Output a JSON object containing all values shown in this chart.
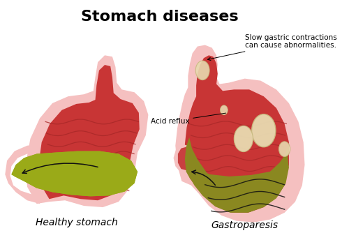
{
  "title": "Stomach diseases",
  "title_fontsize": 16,
  "title_fontweight": "bold",
  "label_healthy": "Healthy stomach",
  "label_gastroparesis": "Gastroparesis",
  "annotation_acid": "Acid reflux",
  "annotation_slow": "Slow gastric contractions\ncan cause abnormalities.",
  "bg_color": "#ffffff",
  "outer_pink": "#f5c0c0",
  "inner_red": "#c83535",
  "rugae_color": "#a82828",
  "food_green": "#9aaa18",
  "food_olive": "#8a8820",
  "bubble_fill": "#e8dab0",
  "bubble_edge": "#c8ba80",
  "arrow_color": "#111111",
  "label_fontsize": 10,
  "annotation_fontsize": 7.5
}
